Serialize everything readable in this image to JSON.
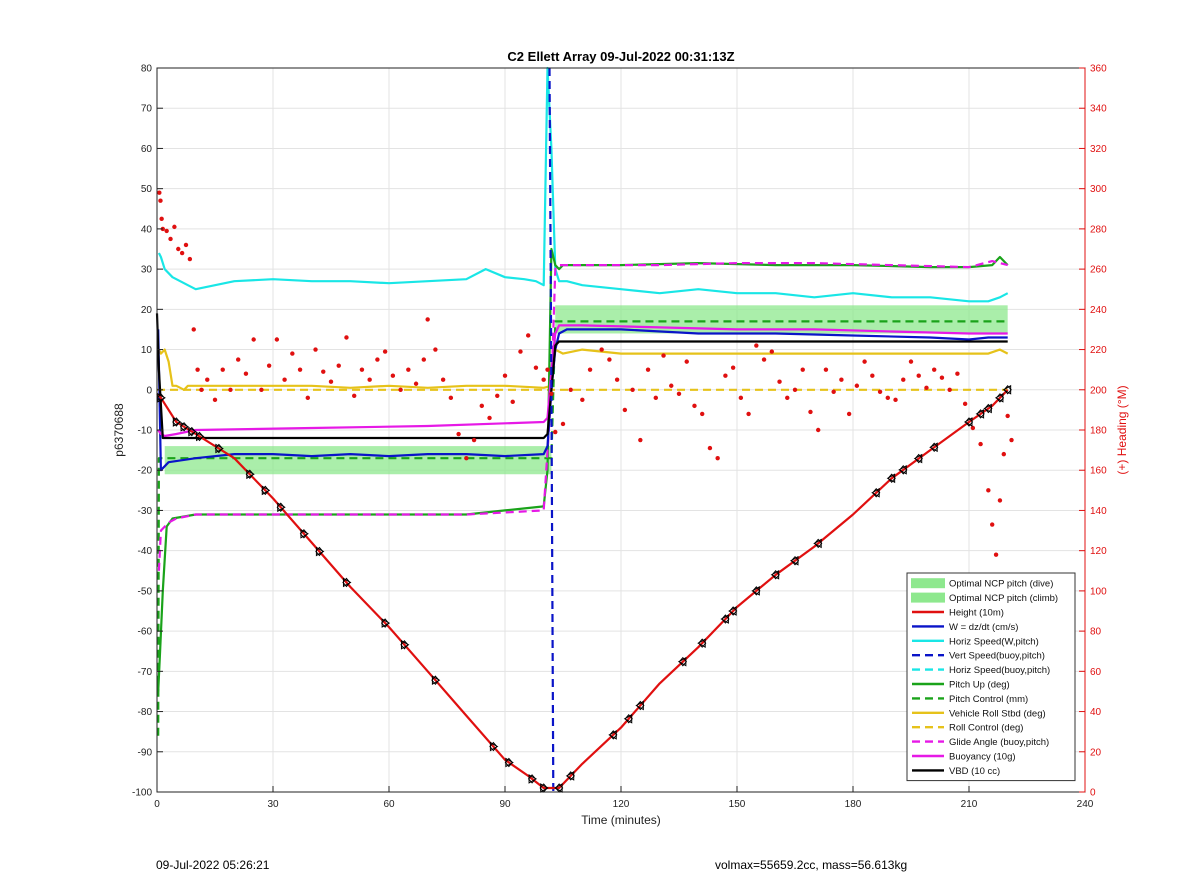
{
  "chart_data": {
    "type": "line",
    "title": "C2 Ellett Array 09-Jul-2022 00:31:13Z",
    "xlabel": "Time (minutes)",
    "ylabel_left": "p6370688",
    "ylabel_right": "(+) Heading (°M)",
    "xlim": [
      0,
      240
    ],
    "ylim_left": [
      -100,
      80
    ],
    "ylim_right": [
      0,
      360
    ],
    "xticks": [
      0,
      30,
      60,
      90,
      120,
      150,
      180,
      210,
      240
    ],
    "yticks_left": [
      -100,
      -90,
      -80,
      -70,
      -60,
      -50,
      -40,
      -30,
      -20,
      -10,
      0,
      10,
      20,
      30,
      40,
      50,
      60,
      70,
      80
    ],
    "yticks_right": [
      0,
      20,
      40,
      60,
      80,
      100,
      120,
      140,
      160,
      180,
      200,
      220,
      240,
      260,
      280,
      300,
      320,
      340,
      360
    ],
    "grid": true,
    "legend_position": "bottom-right",
    "colors": {
      "red": "#e01010",
      "blue": "#0a14c8",
      "cyan": "#19e6e6",
      "green": "#1aa31a",
      "yellow": "#e6c21a",
      "magenta": "#e619e6",
      "black": "#000000",
      "band": "#8ee88e",
      "heading_axis": "#e01010"
    },
    "legend": [
      {
        "label": "Optimal NCP pitch (dive)",
        "color": "#8ee88e",
        "style": "patch"
      },
      {
        "label": "Optimal NCP pitch (climb)",
        "color": "#8ee88e",
        "style": "patch"
      },
      {
        "label": "Height (10m)",
        "color": "#e01010",
        "style": "solid"
      },
      {
        "label": "W = dz/dt (cm/s)",
        "color": "#0a14c8",
        "style": "solid"
      },
      {
        "label": "Horiz Speed(W,pitch)",
        "color": "#19e6e6",
        "style": "solid"
      },
      {
        "label": "Vert Speed(buoy,pitch)",
        "color": "#0a14c8",
        "style": "dashed"
      },
      {
        "label": "Horiz Speed(buoy,pitch)",
        "color": "#19e6e6",
        "style": "dashed"
      },
      {
        "label": "Pitch Up (deg)",
        "color": "#1aa31a",
        "style": "solid"
      },
      {
        "label": "Pitch Control (mm)",
        "color": "#1aa31a",
        "style": "dashed"
      },
      {
        "label": "Vehicle Roll Stbd (deg)",
        "color": "#e6c21a",
        "style": "solid"
      },
      {
        "label": "Roll Control (deg)",
        "color": "#e6c21a",
        "style": "dashed"
      },
      {
        "label": "Glide Angle (buoy,pitch)",
        "color": "#e619e6",
        "style": "dashed"
      },
      {
        "label": "Buoyancy (10g)",
        "color": "#e619e6",
        "style": "solid"
      },
      {
        "label": "VBD (10 cc)",
        "color": "#000000",
        "style": "solid"
      }
    ],
    "bands": [
      {
        "name": "Optimal NCP pitch (dive)",
        "x": [
          2,
          102
        ],
        "y": [
          -21,
          -14
        ]
      },
      {
        "name": "Optimal NCP pitch (climb)",
        "x": [
          103,
          220
        ],
        "y": [
          14,
          21
        ]
      }
    ],
    "series": [
      {
        "name": "Height (10m)",
        "color": "#e01010",
        "style": "solid",
        "x": [
          0,
          1,
          5,
          10,
          20,
          30,
          40,
          50,
          60,
          70,
          80,
          90,
          96,
          100,
          102,
          104,
          110,
          120,
          130,
          140,
          150,
          160,
          170,
          180,
          190,
          200,
          210,
          216,
          220
        ],
        "y": [
          -1,
          -2,
          -8,
          -11,
          -17,
          -27,
          -38,
          -49,
          -59,
          -70,
          -81,
          -92,
          -96,
          -99,
          -99,
          -99,
          -93,
          -84,
          -73,
          -64,
          -54,
          -46,
          -39,
          -31,
          -22,
          -15,
          -8,
          -4,
          0
        ]
      },
      {
        "name": "W = dz/dt (cm/s)",
        "color": "#0a14c8",
        "style": "solid",
        "x": [
          0.3,
          1,
          3,
          10,
          20,
          30,
          40,
          50,
          60,
          70,
          80,
          90,
          100,
          101,
          102,
          103,
          104,
          106,
          110,
          120,
          140,
          160,
          180,
          200,
          210,
          215,
          220
        ],
        "y": [
          15,
          -20,
          -18,
          -17,
          -16,
          -16,
          -16.5,
          -16,
          -16.5,
          -16,
          -16,
          -16.5,
          -16,
          -14,
          0,
          10,
          14,
          15,
          15,
          15,
          14,
          14,
          13.5,
          13,
          12.5,
          13,
          13
        ]
      },
      {
        "name": "Horiz Speed(W,pitch)",
        "color": "#19e6e6",
        "style": "solid",
        "x": [
          0.5,
          1,
          2,
          4,
          6,
          8,
          10,
          20,
          30,
          40,
          50,
          60,
          70,
          80,
          85,
          90,
          95,
          98,
          100,
          101,
          102,
          103,
          104,
          106,
          110,
          120,
          130,
          140,
          150,
          160,
          170,
          180,
          190,
          200,
          210,
          215,
          218,
          220
        ],
        "y": [
          34,
          33,
          30,
          28,
          27,
          26,
          25,
          27,
          27.5,
          27,
          27,
          26.5,
          27,
          27.5,
          30,
          28,
          27.5,
          27,
          26,
          80,
          60,
          30,
          27,
          27,
          26,
          25,
          24,
          25,
          24,
          24,
          23,
          24,
          23,
          23,
          22,
          22,
          23,
          24
        ]
      },
      {
        "name": "Vert Speed(buoy,pitch)",
        "color": "#0a14c8",
        "style": "dashed",
        "x": [
          101.5,
          102,
          102.5,
          103
        ],
        "y": [
          80,
          0,
          -100,
          -100
        ]
      },
      {
        "name": "Pitch Up (deg)",
        "color": "#1aa31a",
        "style": "solid",
        "x": [
          0.3,
          0.8,
          1.5,
          2.5,
          4,
          10,
          20,
          30,
          40,
          50,
          60,
          70,
          80,
          90,
          100,
          101,
          102,
          103,
          104,
          105,
          110,
          120,
          140,
          160,
          180,
          200,
          210,
          216,
          218,
          220
        ],
        "y": [
          -75,
          -65,
          -50,
          -34,
          -32,
          -31,
          -31,
          -31,
          -31,
          -31,
          -31,
          -31,
          -31,
          -30,
          -29,
          -20,
          35,
          31,
          30,
          31,
          31,
          31,
          31.5,
          31,
          31,
          30.5,
          30.5,
          31,
          33,
          31
        ]
      },
      {
        "name": "Pitch Control (mm)",
        "color": "#1aa31a",
        "style": "dashed",
        "x": [
          0.3,
          0.5,
          2,
          10,
          20,
          40,
          60,
          80,
          100,
          102,
          103,
          104,
          110,
          130,
          150,
          170,
          190,
          210,
          220
        ],
        "y": [
          -86,
          -17,
          -17,
          -17,
          -17,
          -17,
          -17,
          -17,
          -17,
          -17,
          17,
          17,
          17,
          17,
          17,
          17,
          17,
          17,
          17
        ]
      },
      {
        "name": "Vehicle Roll Stbd (deg)",
        "color": "#e6c21a",
        "style": "solid",
        "x": [
          0.5,
          1,
          2,
          3,
          4,
          5,
          6,
          7,
          8,
          12,
          20,
          30,
          40,
          50,
          60,
          70,
          80,
          90,
          100,
          102,
          103,
          105,
          110,
          120,
          140,
          160,
          180,
          200,
          210,
          215,
          218,
          220
        ],
        "y": [
          10,
          9,
          10,
          7,
          1,
          1,
          0.5,
          0,
          1,
          1,
          1,
          1,
          1,
          0.5,
          1,
          0.5,
          1,
          1,
          0.5,
          1,
          10,
          9,
          10,
          9,
          9,
          9,
          9,
          9,
          9,
          9,
          10,
          9
        ]
      },
      {
        "name": "Roll Control (deg)",
        "color": "#e6c21a",
        "style": "dashed",
        "x": [
          0,
          20,
          40,
          60,
          80,
          100,
          120,
          140,
          160,
          180,
          200,
          220
        ],
        "y": [
          0,
          0,
          0,
          0,
          0,
          0,
          0,
          0,
          0,
          0,
          0,
          0
        ]
      },
      {
        "name": "Glide Angle (buoy,pitch)",
        "color": "#e619e6",
        "style": "dashed",
        "x": [
          0.5,
          1,
          3,
          5,
          10,
          20,
          40,
          60,
          80,
          100,
          102,
          103,
          104,
          110,
          130,
          150,
          170,
          190,
          210,
          216,
          220
        ],
        "y": [
          -45,
          -35,
          -33,
          -32,
          -31,
          -31,
          -31,
          -31,
          -31,
          -30,
          0,
          30,
          31,
          31,
          31,
          31.5,
          31.5,
          31,
          30.5,
          32,
          31
        ]
      },
      {
        "name": "Buoyancy (10g)",
        "color": "#e619e6",
        "style": "solid",
        "x": [
          0.3,
          1,
          2,
          5,
          10,
          40,
          70,
          100,
          101,
          102,
          103,
          104,
          110,
          130,
          150,
          170,
          190,
          210,
          220
        ],
        "y": [
          -10,
          -11,
          -11.5,
          -11,
          -10,
          -9.5,
          -9,
          -8,
          -7,
          5,
          14,
          16,
          16,
          15.5,
          15,
          15,
          14.5,
          14,
          14
        ]
      },
      {
        "name": "VBD (10 cc)",
        "color": "#000000",
        "style": "solid",
        "x": [
          0,
          0.5,
          1.5,
          2,
          20,
          40,
          60,
          80,
          100,
          101,
          102,
          103,
          104,
          130,
          160,
          190,
          220
        ],
        "y": [
          19,
          5,
          -12,
          -12,
          -12,
          -12,
          -12,
          -12,
          -12,
          -11,
          0,
          11,
          12,
          12,
          12,
          12,
          12
        ]
      }
    ],
    "heading_points": [
      [
        0.6,
        298
      ],
      [
        0.9,
        294
      ],
      [
        1.2,
        285
      ],
      [
        1.5,
        280
      ],
      [
        2.5,
        279
      ],
      [
        3.5,
        275
      ],
      [
        4.5,
        281
      ],
      [
        5.5,
        270
      ],
      [
        6.5,
        268
      ],
      [
        7.5,
        272
      ],
      [
        8.5,
        265
      ],
      [
        9.5,
        230
      ],
      [
        10.5,
        210
      ],
      [
        11.5,
        200
      ],
      [
        13,
        205
      ],
      [
        15,
        195
      ],
      [
        17,
        210
      ],
      [
        19,
        200
      ],
      [
        21,
        215
      ],
      [
        23,
        208
      ],
      [
        25,
        225
      ],
      [
        27,
        200
      ],
      [
        29,
        212
      ],
      [
        31,
        225
      ],
      [
        33,
        205
      ],
      [
        35,
        218
      ],
      [
        37,
        210
      ],
      [
        39,
        196
      ],
      [
        41,
        220
      ],
      [
        43,
        209
      ],
      [
        45,
        204
      ],
      [
        47,
        212
      ],
      [
        49,
        226
      ],
      [
        51,
        197
      ],
      [
        53,
        210
      ],
      [
        55,
        205
      ],
      [
        57,
        215
      ],
      [
        59,
        219
      ],
      [
        61,
        207
      ],
      [
        63,
        200
      ],
      [
        65,
        210
      ],
      [
        67,
        203
      ],
      [
        69,
        215
      ],
      [
        70,
        235
      ],
      [
        72,
        220
      ],
      [
        74,
        205
      ],
      [
        76,
        196
      ],
      [
        78,
        178
      ],
      [
        80,
        166
      ],
      [
        82,
        175
      ],
      [
        84,
        192
      ],
      [
        86,
        186
      ],
      [
        88,
        197
      ],
      [
        90,
        207
      ],
      [
        92,
        194
      ],
      [
        94,
        219
      ],
      [
        96,
        227
      ],
      [
        98,
        211
      ],
      [
        100,
        205
      ],
      [
        101,
        210
      ],
      [
        102,
        198
      ],
      [
        103,
        179
      ],
      [
        105,
        183
      ],
      [
        107,
        200
      ],
      [
        110,
        195
      ],
      [
        112,
        210
      ],
      [
        115,
        220
      ],
      [
        117,
        215
      ],
      [
        119,
        205
      ],
      [
        121,
        190
      ],
      [
        123,
        200
      ],
      [
        125,
        175
      ],
      [
        127,
        210
      ],
      [
        129,
        196
      ],
      [
        131,
        217
      ],
      [
        133,
        202
      ],
      [
        135,
        198
      ],
      [
        137,
        214
      ],
      [
        139,
        192
      ],
      [
        141,
        188
      ],
      [
        143,
        171
      ],
      [
        145,
        166
      ],
      [
        147,
        207
      ],
      [
        149,
        211
      ],
      [
        151,
        196
      ],
      [
        153,
        188
      ],
      [
        155,
        222
      ],
      [
        157,
        215
      ],
      [
        159,
        219
      ],
      [
        161,
        204
      ],
      [
        163,
        196
      ],
      [
        165,
        200
      ],
      [
        167,
        210
      ],
      [
        169,
        189
      ],
      [
        171,
        180
      ],
      [
        173,
        210
      ],
      [
        175,
        199
      ],
      [
        177,
        205
      ],
      [
        179,
        188
      ],
      [
        181,
        202
      ],
      [
        183,
        214
      ],
      [
        185,
        207
      ],
      [
        187,
        199
      ],
      [
        189,
        196
      ],
      [
        191,
        195
      ],
      [
        193,
        205
      ],
      [
        195,
        214
      ],
      [
        197,
        207
      ],
      [
        199,
        201
      ],
      [
        201,
        210
      ],
      [
        203,
        206
      ],
      [
        205,
        200
      ],
      [
        207,
        208
      ],
      [
        209,
        193
      ],
      [
        211,
        181
      ],
      [
        213,
        173
      ],
      [
        215,
        150
      ],
      [
        216,
        133
      ],
      [
        217,
        118
      ],
      [
        218,
        145
      ],
      [
        219,
        168
      ],
      [
        220,
        187
      ],
      [
        221,
        175
      ]
    ],
    "height_markers_x": [
      1,
      5,
      7,
      9,
      11,
      16,
      24,
      28,
      32,
      38,
      42,
      49,
      59,
      64,
      72,
      87,
      91,
      97,
      100,
      104,
      107,
      118,
      122,
      125,
      136,
      141,
      147,
      149,
      155,
      160,
      165,
      171,
      186,
      190,
      193,
      197,
      201,
      210,
      213,
      215,
      218,
      220
    ],
    "footer_left": "09-Jul-2022 05:26:21",
    "footer_right": "volmax=55659.2cc, mass=56.613kg"
  }
}
